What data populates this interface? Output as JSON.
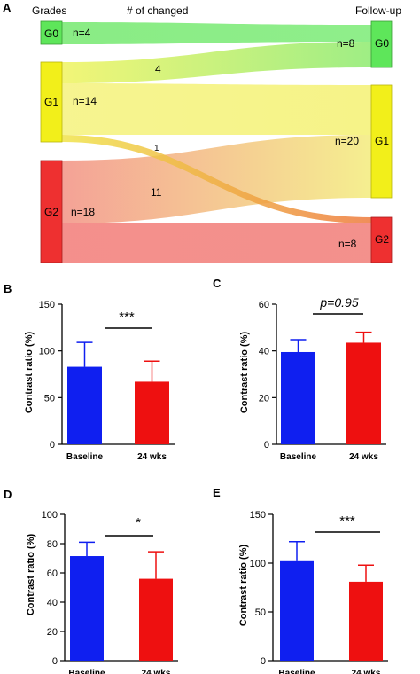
{
  "panels": {
    "A": "A",
    "B": "B",
    "C": "C",
    "D": "D",
    "E": "E"
  },
  "colors": {
    "G0": "#5ee65a",
    "G1": "#f2ef1a",
    "G2": "#ee3030",
    "baseline": "#0f1ff0",
    "wks24": "#ee1010"
  },
  "chart_data": [
    {
      "type": "sankey",
      "panel": "A",
      "left_header": "Grades",
      "middle_header": "# of changed",
      "right_header": "Follow-up",
      "left_nodes": [
        {
          "id": "G0",
          "label": "G0",
          "count_label": "n=4",
          "value": 4
        },
        {
          "id": "G1",
          "label": "G1",
          "count_label": "n=14",
          "value": 14
        },
        {
          "id": "G2",
          "label": "G2",
          "count_label": "n=18",
          "value": 18
        }
      ],
      "right_nodes": [
        {
          "id": "G0",
          "label": "G0",
          "count_label": "n=8",
          "value": 8
        },
        {
          "id": "G1",
          "label": "G1",
          "count_label": "n=20",
          "value": 20
        },
        {
          "id": "G2",
          "label": "G2",
          "count_label": "n=8",
          "value": 8
        }
      ],
      "links": [
        {
          "source": "G0",
          "target": "G0",
          "value": 4,
          "label": ""
        },
        {
          "source": "G1",
          "target": "G0",
          "value": 4,
          "label": "4"
        },
        {
          "source": "G1",
          "target": "G1",
          "value": 9,
          "label": ""
        },
        {
          "source": "G1",
          "target": "G2",
          "value": 1,
          "label": "1"
        },
        {
          "source": "G2",
          "target": "G1",
          "value": 11,
          "label": "11"
        },
        {
          "source": "G2",
          "target": "G2",
          "value": 7,
          "label": ""
        }
      ]
    },
    {
      "type": "bar",
      "panel": "B",
      "categories": [
        "Baseline",
        "24 wks"
      ],
      "values": [
        83,
        67
      ],
      "errors": [
        26,
        22
      ],
      "ylabel": "Contrast ratio (%)",
      "ylim": [
        0,
        150
      ],
      "yticks": [
        "0",
        "50",
        "100",
        "150"
      ],
      "significance": "***"
    },
    {
      "type": "bar",
      "panel": "C",
      "categories": [
        "Baseline",
        "24 wks"
      ],
      "values": [
        39.5,
        43.5
      ],
      "errors": [
        5.3,
        4.5
      ],
      "ylabel": "Contrast ratio (%)",
      "ylim": [
        0,
        60
      ],
      "yticks": [
        "0",
        "20",
        "40",
        "60"
      ],
      "significance": "p=0.95"
    },
    {
      "type": "bar",
      "panel": "D",
      "categories": [
        "Baseline",
        "24 wks"
      ],
      "values": [
        71.5,
        56
      ],
      "errors": [
        9.5,
        18.5
      ],
      "ylabel": "Contrast ratio (%)",
      "ylim": [
        0,
        100
      ],
      "yticks": [
        "0",
        "20",
        "40",
        "60",
        "80",
        "100"
      ],
      "significance": "*"
    },
    {
      "type": "bar",
      "panel": "E",
      "categories": [
        "Baseline",
        "24 wks"
      ],
      "values": [
        102,
        81
      ],
      "errors": [
        20,
        17
      ],
      "ylabel": "Contrast ratio (%)",
      "ylim": [
        0,
        150
      ],
      "yticks": [
        "0",
        "50",
        "100",
        "150"
      ],
      "significance": "***"
    }
  ]
}
